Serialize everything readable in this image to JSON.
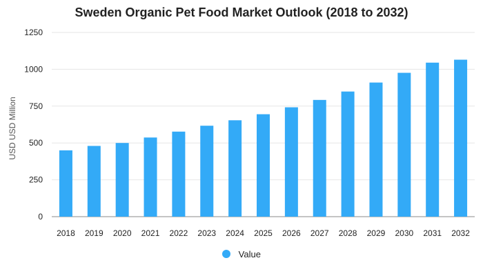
{
  "chart_data": {
    "type": "bar",
    "title": "Sweden Organic Pet Food Market Outlook (2018 to 2032)",
    "xlabel": "",
    "ylabel": "USD USD Million",
    "ylim": [
      0,
      1250
    ],
    "yticks": [
      0,
      250,
      500,
      750,
      1000,
      1250
    ],
    "categories": [
      "2018",
      "2019",
      "2020",
      "2021",
      "2022",
      "2023",
      "2024",
      "2025",
      "2026",
      "2027",
      "2028",
      "2029",
      "2030",
      "2031",
      "2032"
    ],
    "series": [
      {
        "name": "Value",
        "values": [
          450,
          480,
          500,
          537,
          577,
          617,
          654,
          695,
          742,
          792,
          849,
          910,
          976,
          1045,
          1065
        ]
      }
    ],
    "grid": true,
    "legend": "bottom",
    "colors": {
      "bar": "#33aaf7",
      "grid": "#e6e6e6",
      "axis": "#888888"
    }
  }
}
